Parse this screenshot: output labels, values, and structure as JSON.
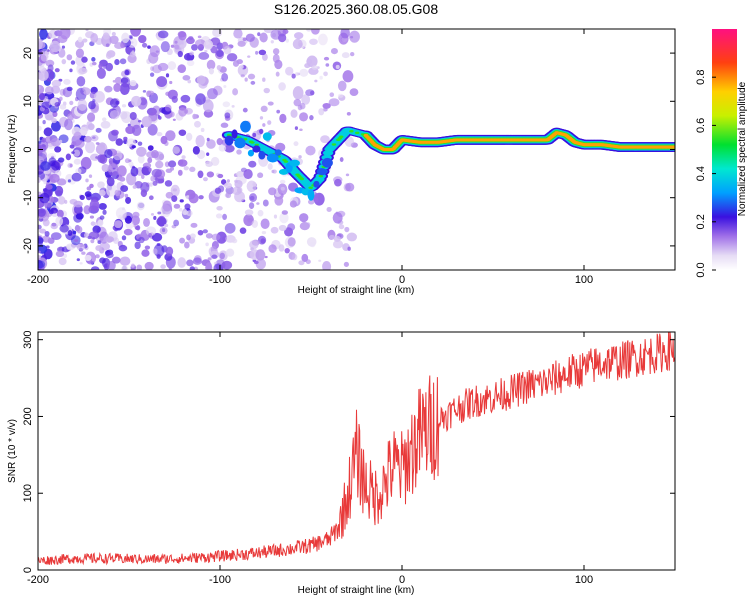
{
  "title": "S126.2025.360.08.05.G08",
  "chart_data": [
    {
      "type": "heatmap",
      "xlabel": "Height of straight line (km)",
      "ylabel": "Frequency (Hz)",
      "xlim": [
        -200,
        150
      ],
      "ylim": [
        -25,
        25
      ],
      "xticks": [
        -200,
        -100,
        0,
        100
      ],
      "yticks": [
        -20,
        -10,
        0,
        10,
        20
      ],
      "ridge": {
        "x": [
          -95,
          -85,
          -75,
          -65,
          -58,
          -50,
          -45,
          -40,
          -35,
          -30,
          -25,
          -20,
          -15,
          -10,
          -5,
          0,
          10,
          20,
          30,
          40,
          50,
          60,
          70,
          80,
          85,
          90,
          95,
          100,
          110,
          120,
          130,
          140,
          150
        ],
        "y": [
          3,
          2,
          0,
          -2,
          -5,
          -8,
          -6,
          0,
          2,
          4,
          3.5,
          3,
          1,
          0,
          0,
          2,
          1.5,
          1.5,
          2,
          2,
          2,
          2,
          2,
          2,
          3.5,
          3,
          1.5,
          1,
          1,
          0.5,
          0.5,
          0.5,
          0.5
        ]
      },
      "colorbar": {
        "label": "Normalized spectral amplitude",
        "ticks": [
          0.0,
          0.2,
          0.4,
          0.6,
          0.8
        ],
        "range": [
          0,
          1
        ]
      }
    },
    {
      "type": "line",
      "xlabel": "Height of straight line (km)",
      "ylabel": "SNR (10 * v/v)",
      "xlim": [
        -200,
        150
      ],
      "ylim": [
        0,
        310
      ],
      "xticks": [
        -200,
        -100,
        0,
        100
      ],
      "yticks": [
        0,
        100,
        200,
        300
      ],
      "series": [
        {
          "name": "SNR",
          "color": "#e83a3a",
          "x": [
            -200,
            -180,
            -160,
            -140,
            -120,
            -100,
            -80,
            -60,
            -50,
            -40,
            -35,
            -30,
            -25,
            -20,
            -15,
            -10,
            -5,
            0,
            5,
            10,
            15,
            20,
            30,
            40,
            50,
            60,
            70,
            80,
            90,
            100,
            110,
            120,
            130,
            140,
            150
          ],
          "y": [
            12,
            15,
            15,
            14,
            15,
            18,
            22,
            28,
            32,
            40,
            55,
            95,
            150,
            110,
            95,
            110,
            135,
            130,
            155,
            175,
            185,
            195,
            210,
            220,
            225,
            232,
            240,
            245,
            255,
            262,
            270,
            272,
            278,
            282,
            288
          ]
        }
      ]
    }
  ]
}
